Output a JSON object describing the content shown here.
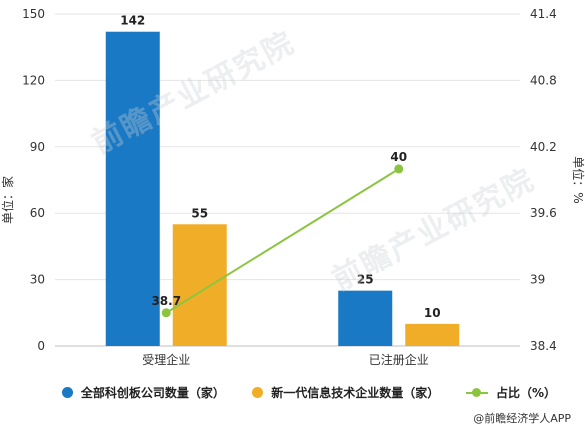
{
  "chart_data": {
    "type": "bar",
    "categories": [
      "受理企业",
      "已注册企业"
    ],
    "series": [
      {
        "name": "全部科创板公司数量（家）",
        "type": "bar",
        "axis": "left",
        "color": "#1a79c4",
        "values": [
          142,
          25
        ]
      },
      {
        "name": "新一代信息技术企业数量（家）",
        "type": "bar",
        "axis": "left",
        "color": "#f0ae28",
        "values": [
          55,
          10
        ]
      },
      {
        "name": "占比（%）",
        "type": "line",
        "axis": "right",
        "color": "#8bc53f",
        "values": [
          38.7,
          40
        ]
      }
    ],
    "data_labels": {
      "bars": [
        [
          "142",
          "25"
        ],
        [
          "55",
          "10"
        ]
      ],
      "line": [
        "38.7",
        "40"
      ]
    },
    "ylabel": "单位：家",
    "y2label": "单位：%",
    "ylim": [
      0,
      150
    ],
    "yticks": [
      "0",
      "30",
      "60",
      "90",
      "120",
      "150"
    ],
    "y2lim": [
      38.4,
      41.4
    ],
    "y2ticks": [
      "38.4",
      "39",
      "39.6",
      "40.2",
      "40.8",
      "41.4"
    ],
    "grid": true,
    "legend_position": "bottom"
  },
  "source_text": "@前瞻经济学人APP",
  "watermark_text": "前瞻产业研究院"
}
